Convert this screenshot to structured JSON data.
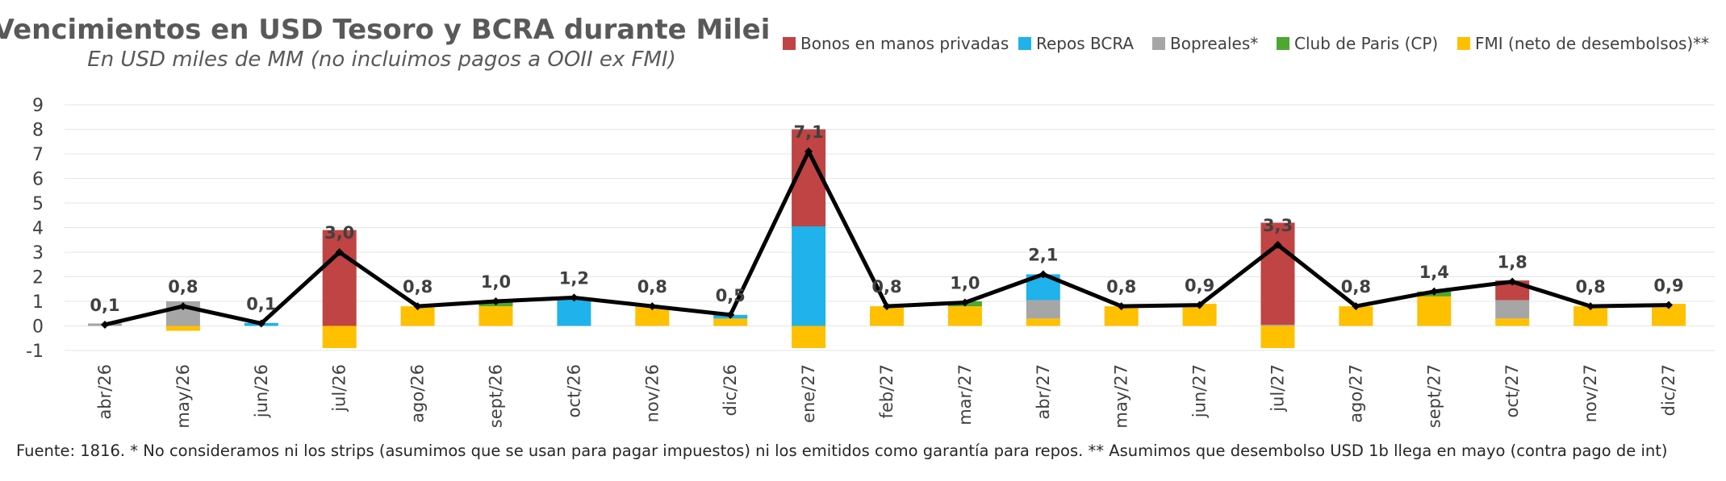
{
  "chart_data": {
    "type": "bar",
    "stacked": true,
    "title": "Vencimientos en USD Tesoro y BCRA durante Milei",
    "subtitle": "En USD miles de MM (no incluimos pagos a OOII ex FMI)",
    "footnote": "Fuente: 1816. * No consideramos ni los strips (asumimos que se usan para pagar impuestos) ni los emitidos como garantía para repos. ** Asumimos que desembolso USD 1b llega en mayo (contra pago de int)",
    "xlabel": "",
    "ylabel": "",
    "ylim": [
      -1,
      9
    ],
    "yticks": [
      "-1",
      "0",
      "1",
      "2",
      "3",
      "4",
      "5",
      "6",
      "7",
      "8",
      "9"
    ],
    "grid": true,
    "legend_position": "top-right",
    "categories": [
      "abr/26",
      "may/26",
      "jun/26",
      "jul/26",
      "ago/26",
      "sept/26",
      "oct/26",
      "nov/26",
      "dic/26",
      "ene/27",
      "feb/27",
      "mar/27",
      "abr/27",
      "may/27",
      "jun/27",
      "jul/27",
      "ago/27",
      "sept/27",
      "oct/27",
      "nov/27",
      "dic/27"
    ],
    "series": [
      {
        "name": "FMI (neto de desembolsos)**",
        "color": "#FFC000",
        "values": [
          0,
          -0.2,
          0,
          -0.9,
          0.8,
          0.8,
          0,
          0.8,
          0.3,
          -0.9,
          0.8,
          0.8,
          0.3,
          0.8,
          0.9,
          -0.9,
          0.8,
          1.2,
          0.3,
          0.8,
          0.9
        ]
      },
      {
        "name": "Bopreales*",
        "color": "#A6A6A6",
        "values": [
          0.1,
          1.0,
          0,
          0,
          0,
          0,
          0,
          0,
          0,
          0,
          0,
          0,
          0.75,
          0,
          0,
          0.05,
          0,
          0,
          0.75,
          0,
          0
        ]
      },
      {
        "name": "Repos BCRA",
        "color": "#20B2EA",
        "values": [
          0,
          0,
          0.12,
          0,
          0,
          0,
          1.1,
          0,
          0.15,
          4.05,
          0,
          0,
          1.05,
          0,
          0,
          0,
          0,
          0,
          0,
          0,
          0
        ]
      },
      {
        "name": "Club de Paris (CP)",
        "color": "#4CA82F",
        "values": [
          0,
          0,
          0,
          0,
          0,
          0.15,
          0,
          0,
          0,
          0,
          0,
          0.2,
          0,
          0,
          0,
          0,
          0,
          0.2,
          0,
          0,
          0
        ]
      },
      {
        "name": "Bonos en manos privadas",
        "color": "#BF4443",
        "values": [
          0,
          0,
          0,
          3.9,
          0,
          0,
          0,
          0,
          0,
          3.95,
          0,
          0,
          0,
          0,
          0,
          4.15,
          0,
          0,
          0.8,
          0,
          0
        ]
      }
    ],
    "legend_order": [
      "Bonos en manos privadas",
      "Repos BCRA",
      "Bopreales*",
      "Club de Paris (CP)",
      "FMI (neto de desembolsos)**"
    ],
    "total_line": {
      "name": "Total",
      "color": "#000000",
      "values": [
        0.05,
        0.8,
        0.1,
        3.0,
        0.8,
        1.0,
        1.15,
        0.8,
        0.45,
        7.1,
        0.8,
        0.95,
        2.1,
        0.8,
        0.85,
        3.3,
        0.8,
        1.4,
        1.8,
        0.8,
        0.85
      ],
      "labels": [
        "0,1",
        "0,8",
        "0,1",
        "3,0",
        "0,8",
        "1,0",
        "1,2",
        "0,8",
        "0,5",
        "7,1",
        "0,8",
        "1,0",
        "2,1",
        "0,8",
        "0,9",
        "3,3",
        "0,8",
        "1,4",
        "1,8",
        "0,8",
        "0,9"
      ]
    }
  }
}
